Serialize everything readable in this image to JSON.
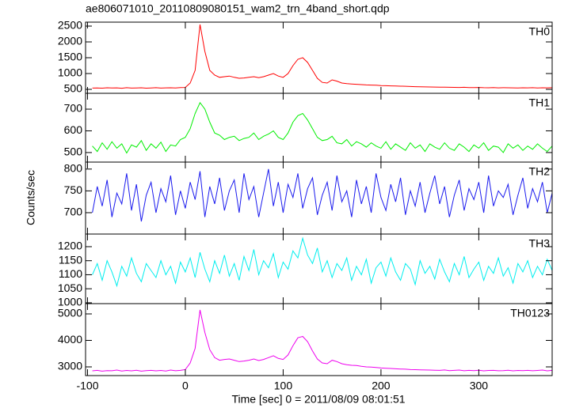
{
  "chart_data": {
    "type": "line",
    "title": "ae806071010_20110809080151_wam2_trn_4band_short.qdp",
    "x_label": "Time [sec] 0 = 2011/08/09 08:01:51",
    "y_label": "Counts/sec",
    "xlim": [
      -102,
      375
    ],
    "xticks": [
      -100,
      0,
      100,
      200,
      300
    ],
    "x": [
      -95,
      -90,
      -85,
      -80,
      -75,
      -70,
      -65,
      -60,
      -55,
      -50,
      -45,
      -40,
      -35,
      -30,
      -25,
      -20,
      -15,
      -10,
      -5,
      0,
      5,
      10,
      15,
      20,
      25,
      30,
      35,
      40,
      45,
      50,
      55,
      60,
      65,
      70,
      75,
      80,
      85,
      90,
      95,
      100,
      105,
      110,
      115,
      120,
      125,
      130,
      135,
      140,
      145,
      150,
      155,
      160,
      165,
      170,
      175,
      180,
      185,
      190,
      195,
      200,
      205,
      210,
      215,
      220,
      225,
      230,
      235,
      240,
      245,
      250,
      255,
      260,
      265,
      270,
      275,
      280,
      285,
      290,
      295,
      300,
      305,
      310,
      315,
      320,
      325,
      330,
      335,
      340,
      345,
      350,
      355,
      360,
      365,
      370,
      375
    ],
    "series": [
      {
        "name": "TH0",
        "color": "#ff0000",
        "ylim": [
          375,
          2625
        ],
        "yticks": [
          500,
          1000,
          1500,
          2000,
          2500
        ],
        "values": [
          540,
          545,
          538,
          550,
          542,
          548,
          536,
          552,
          540,
          545,
          550,
          538,
          546,
          552,
          541,
          547,
          550,
          543,
          555,
          560,
          700,
          1100,
          2550,
          1700,
          1100,
          950,
          880,
          900,
          920,
          880,
          850,
          860,
          880,
          900,
          870,
          900,
          950,
          1000,
          920,
          880,
          1000,
          1250,
          1450,
          1500,
          1350,
          1100,
          850,
          720,
          700,
          800,
          760,
          700,
          680,
          670,
          660,
          650,
          640,
          635,
          630,
          620,
          615,
          610,
          605,
          600,
          598,
          590,
          585,
          580,
          578,
          575,
          572,
          570,
          568,
          565,
          562,
          560,
          565,
          558,
          555,
          560,
          552,
          550,
          555,
          548,
          552,
          550,
          548,
          545,
          550,
          548,
          552,
          545,
          550,
          548,
          552
        ]
      },
      {
        "name": "TH1",
        "color": "#00ee00",
        "ylim": [
          456,
          773
        ],
        "yticks": [
          500,
          600,
          700
        ],
        "values": [
          530,
          505,
          545,
          515,
          550,
          520,
          540,
          498,
          535,
          525,
          555,
          510,
          540,
          520,
          548,
          505,
          535,
          530,
          560,
          570,
          610,
          680,
          730,
          700,
          640,
          590,
          580,
          560,
          570,
          575,
          555,
          565,
          570,
          590,
          560,
          575,
          585,
          600,
          570,
          560,
          590,
          640,
          670,
          680,
          650,
          610,
          570,
          555,
          560,
          575,
          545,
          540,
          560,
          530,
          550,
          540,
          525,
          545,
          530,
          520,
          550,
          515,
          540,
          525,
          510,
          545,
          520,
          535,
          505,
          540,
          525,
          515,
          545,
          520,
          510,
          540,
          525,
          505,
          535,
          520,
          545,
          510,
          530,
          525,
          500,
          540,
          520,
          535,
          510,
          530,
          515,
          540,
          520,
          505,
          530
        ]
      },
      {
        "name": "TH2",
        "color": "#1a1aee",
        "ylim": [
          651,
          816
        ],
        "yticks": [
          700,
          750,
          800
        ],
        "values": [
          700,
          760,
          715,
          775,
          690,
          745,
          720,
          790,
          705,
          765,
          680,
          740,
          770,
          700,
          755,
          725,
          785,
          695,
          750,
          710,
          770,
          730,
          795,
          690,
          760,
          720,
          780,
          705,
          750,
          775,
          700,
          790,
          730,
          760,
          690,
          745,
          800,
          715,
          770,
          700,
          765,
          735,
          790,
          710,
          755,
          780,
          695,
          740,
          770,
          705,
          785,
          725,
          750,
          690,
          775,
          720,
          760,
          700,
          790,
          735,
          705,
          765,
          725,
          780,
          695,
          750,
          715,
          770,
          700,
          745,
          785,
          720,
          760,
          690,
          740,
          775,
          705,
          755,
          730,
          770,
          700,
          785,
          715,
          750,
          735,
          765,
          695,
          740,
          780,
          710,
          755,
          725,
          770,
          700,
          745
        ]
      },
      {
        "name": "TH3",
        "color": "#00eeee",
        "ylim": [
          997,
          1245
        ],
        "yticks": [
          1000,
          1050,
          1100,
          1150,
          1200
        ],
        "values": [
          1100,
          1140,
          1080,
          1150,
          1110,
          1060,
          1130,
          1095,
          1160,
          1105,
          1075,
          1140,
          1115,
          1090,
          1150,
          1100,
          1130,
          1070,
          1145,
          1110,
          1160,
          1090,
          1180,
          1120,
          1075,
          1150,
          1105,
          1170,
          1095,
          1140,
          1080,
          1165,
          1115,
          1190,
          1100,
          1150,
          1125,
          1175,
          1090,
          1145,
          1120,
          1185,
          1160,
          1230,
          1170,
          1140,
          1195,
          1110,
          1150,
          1090,
          1140,
          1115,
          1160,
          1080,
          1130,
          1100,
          1155,
          1070,
          1125,
          1145,
          1095,
          1160,
          1110,
          1080,
          1140,
          1120,
          1065,
          1150,
          1105,
          1130,
          1085,
          1155,
          1110,
          1075,
          1140,
          1100,
          1165,
          1090,
          1120,
          1145,
          1080,
          1130,
          1105,
          1160,
          1095,
          1125,
          1070,
          1140,
          1110,
          1150,
          1090,
          1130,
          1100,
          1155,
          1115
        ]
      },
      {
        "name": "TH0123",
        "color": "#ee00ee",
        "ylim": [
          2672,
          5388
        ],
        "yticks": [
          3000,
          4000,
          5000
        ],
        "values": [
          2850,
          2870,
          2840,
          2860,
          2855,
          2880,
          2845,
          2865,
          2850,
          2875,
          2840,
          2860,
          2870,
          2850,
          2865,
          2845,
          2880,
          2855,
          2870,
          2900,
          3150,
          3700,
          5150,
          4300,
          3650,
          3350,
          3250,
          3280,
          3300,
          3250,
          3200,
          3220,
          3250,
          3300,
          3240,
          3280,
          3350,
          3420,
          3320,
          3280,
          3450,
          3800,
          4100,
          4150,
          3950,
          3600,
          3300,
          3150,
          3120,
          3250,
          3200,
          3120,
          3080,
          3060,
          3050,
          3020,
          3000,
          2990,
          2980,
          2960,
          2950,
          2940,
          2930,
          2920,
          2915,
          2900,
          2895,
          2890,
          2885,
          2880,
          2875,
          2870,
          2885,
          2860,
          2870,
          2880,
          2855,
          2870,
          2860,
          2875,
          2850,
          2865,
          2870,
          2855,
          2860,
          2875,
          2850,
          2865,
          2860,
          2870,
          2855,
          2865,
          2880,
          2850,
          2870
        ]
      }
    ]
  }
}
